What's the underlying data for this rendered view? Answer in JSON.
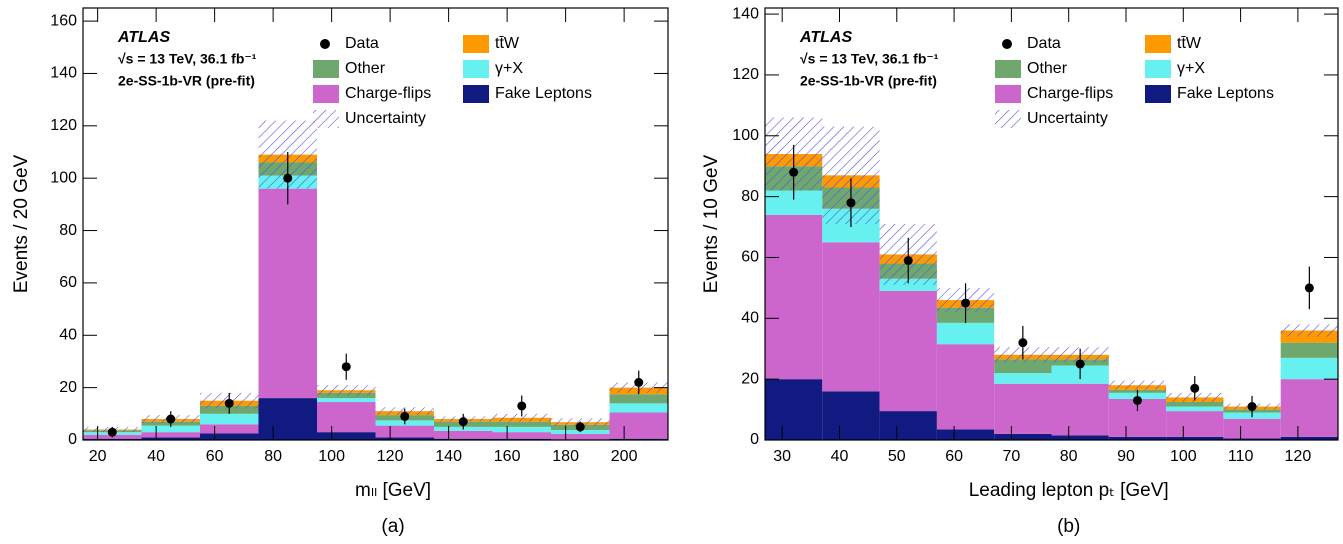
{
  "chart_data": [
    {
      "type": "stacked_histogram",
      "caption": "(a)",
      "annotations": [
        "ATLAS",
        "√s = 13 TeV, 36.1 fb⁻¹",
        "2e-SS-1b-VR (pre-fit)"
      ],
      "x_label": "mₗₗ [GeV]",
      "y_label": "Events / 20 GeV",
      "bins": [
        15,
        35,
        55,
        75,
        95,
        115,
        135,
        155,
        175,
        195,
        215
      ],
      "series": [
        {
          "name": "Fake Leptons",
          "color": "#101a80",
          "values": [
            0.5,
            1,
            2.5,
            16,
            3,
            1,
            0.5,
            0.5,
            0.3,
            0.5
          ]
        },
        {
          "name": "Charge-flips",
          "color": "#cc66cc",
          "values": [
            1.5,
            2,
            3.5,
            80,
            11.5,
            4.5,
            3,
            2.5,
            2,
            10
          ]
        },
        {
          "name": "γ+X",
          "color": "#66f0f0",
          "values": [
            1,
            2.5,
            4,
            5,
            1.5,
            2,
            1.5,
            2,
            1.5,
            3.5
          ]
        },
        {
          "name": "Other",
          "color": "#6fa86f",
          "values": [
            0.7,
            1.5,
            3,
            5,
            2,
            2,
            2,
            2,
            2,
            3.5
          ]
        },
        {
          "name": "tt̄W",
          "color": "#ff9900",
          "values": [
            0.3,
            1,
            2,
            3,
            1,
            1.5,
            1,
            1.5,
            1,
            2.5
          ]
        }
      ],
      "data": {
        "name": "Data",
        "color": "#000000",
        "values": [
          3,
          8,
          14,
          100,
          28,
          9,
          7,
          13,
          5,
          22
        ],
        "errors": [
          2,
          3,
          4,
          10,
          5,
          3,
          3,
          4,
          2,
          4.5
        ]
      },
      "uncertainty": {
        "name": "Uncertainty",
        "color": "#5555dd",
        "values": [
          1,
          1.5,
          3,
          13,
          2,
          1.5,
          1,
          1.5,
          1.5,
          2
        ]
      },
      "xlim": [
        15,
        215
      ],
      "ylim": [
        0,
        165
      ],
      "xticks": [
        20,
        40,
        60,
        80,
        100,
        120,
        140,
        160,
        180,
        200
      ],
      "yticks": [
        0,
        20,
        40,
        60,
        80,
        100,
        120,
        140,
        160
      ]
    },
    {
      "type": "stacked_histogram",
      "caption": "(b)",
      "annotations": [
        "ATLAS",
        "√s = 13 TeV, 36.1 fb⁻¹",
        "2e-SS-1b-VR (pre-fit)"
      ],
      "x_label": "Leading lepton pₜ [GeV]",
      "y_label": "Events / 10 GeV",
      "bins": [
        27,
        37,
        47,
        57,
        67,
        77,
        87,
        97,
        107,
        117,
        127
      ],
      "series": [
        {
          "name": "Fake Leptons",
          "color": "#101a80",
          "values": [
            20,
            16,
            9.5,
            3.5,
            2,
            1.5,
            1,
            1,
            0.5,
            1
          ]
        },
        {
          "name": "Charge-flips",
          "color": "#cc66cc",
          "values": [
            54,
            49,
            39.5,
            28,
            16.5,
            17,
            12.5,
            8.5,
            6.5,
            19
          ]
        },
        {
          "name": "γ+X",
          "color": "#66f0f0",
          "values": [
            8,
            11,
            4,
            7,
            3.5,
            6,
            2,
            1.5,
            2,
            7
          ]
        },
        {
          "name": "Other",
          "color": "#6fa86f",
          "values": [
            8,
            7,
            5,
            5,
            4.5,
            2,
            1,
            1.5,
            1,
            5
          ]
        },
        {
          "name": "tt̄W",
          "color": "#ff9900",
          "values": [
            4,
            4,
            3,
            2.5,
            1.5,
            1.5,
            1.5,
            1.5,
            1,
            4
          ]
        }
      ],
      "data": {
        "name": "Data",
        "color": "#000000",
        "values": [
          88,
          78,
          59,
          45,
          32,
          25,
          13,
          17,
          11,
          50
        ],
        "errors": [
          9,
          8,
          7.5,
          6.5,
          5.5,
          5,
          3.5,
          4,
          3.5,
          7
        ]
      },
      "uncertainty": {
        "name": "Uncertainty",
        "color": "#5555dd",
        "values": [
          12,
          16,
          10,
          4,
          2.5,
          2.5,
          1.5,
          1.5,
          1,
          2
        ]
      },
      "xlim": [
        27,
        127
      ],
      "ylim": [
        0,
        142
      ],
      "xticks": [
        30,
        40,
        50,
        60,
        70,
        80,
        90,
        100,
        110,
        120
      ],
      "yticks": [
        0,
        20,
        40,
        60,
        80,
        100,
        120,
        140
      ]
    }
  ]
}
